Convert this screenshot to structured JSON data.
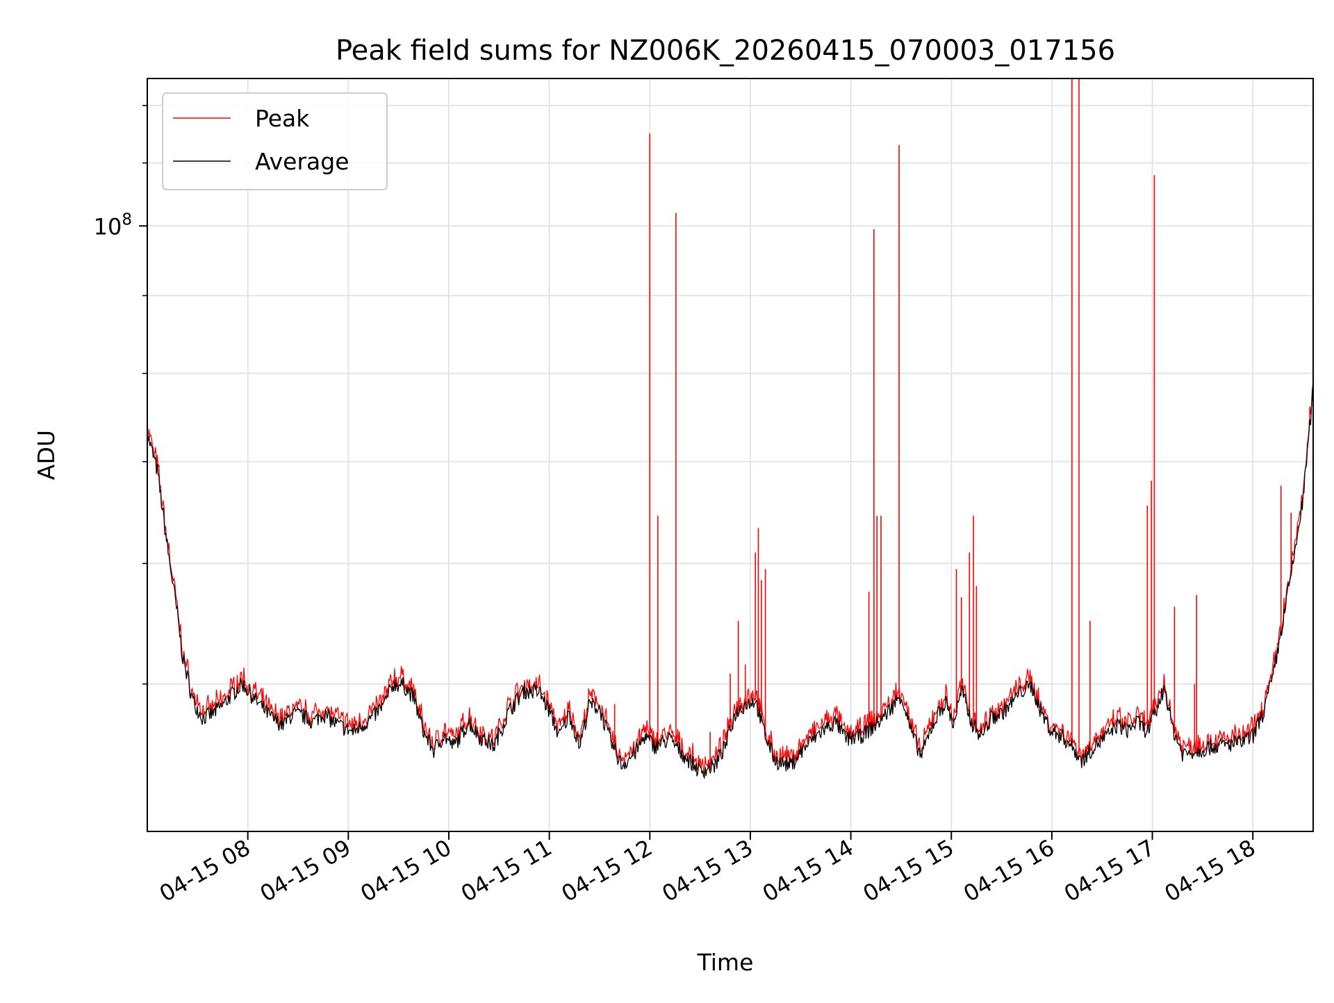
{
  "chart_data": {
    "type": "line",
    "title": "Peak field sums for NZ006K_20260415_070003_017156",
    "xlabel": "Time",
    "ylabel": "ADU",
    "yscale": "log",
    "ylim": [
      40000000.0,
      125000000.0
    ],
    "xlim": [
      7.0,
      18.6
    ],
    "grid": true,
    "legend": {
      "position": "top-left",
      "entries": [
        "Peak",
        "Average"
      ]
    },
    "x_ticks": [
      {
        "value": 8,
        "label": "04-15 08"
      },
      {
        "value": 9,
        "label": "04-15 09"
      },
      {
        "value": 10,
        "label": "04-15 10"
      },
      {
        "value": 11,
        "label": "04-15 11"
      },
      {
        "value": 12,
        "label": "04-15 12"
      },
      {
        "value": 13,
        "label": "04-15 13"
      },
      {
        "value": 14,
        "label": "04-15 14"
      },
      {
        "value": 15,
        "label": "04-15 15"
      },
      {
        "value": 16,
        "label": "04-15 16"
      },
      {
        "value": 17,
        "label": "04-15 17"
      },
      {
        "value": 18,
        "label": "04-15 18"
      }
    ],
    "y_major_ticks": [
      {
        "value": 100000000.0,
        "base": "10",
        "exp": "8"
      }
    ],
    "y_minor_ticks": [
      50000000.0,
      60000000.0,
      70000000.0,
      80000000.0,
      90000000.0,
      110000000.0,
      120000000.0
    ],
    "series": [
      {
        "name": "Average",
        "color": "#000000",
        "points": [
          [
            7.0,
            73000000.0
          ],
          [
            7.1,
            69000000.0
          ],
          [
            7.2,
            61500000.0
          ],
          [
            7.3,
            55500000.0
          ],
          [
            7.35,
            52200000.0
          ],
          [
            7.45,
            48800000.0
          ],
          [
            7.55,
            47500000.0
          ],
          [
            7.65,
            47800000.0
          ],
          [
            7.75,
            48400000.0
          ],
          [
            7.85,
            49300000.0
          ],
          [
            7.95,
            50000000.0
          ],
          [
            8.05,
            49000000.0
          ],
          [
            8.15,
            48200000.0
          ],
          [
            8.25,
            47400000.0
          ],
          [
            8.35,
            47000000.0
          ],
          [
            8.45,
            47800000.0
          ],
          [
            8.55,
            47600000.0
          ],
          [
            8.65,
            47200000.0
          ],
          [
            8.75,
            47800000.0
          ],
          [
            8.85,
            47200000.0
          ],
          [
            8.95,
            46800000.0
          ],
          [
            9.05,
            46500000.0
          ],
          [
            9.15,
            47000000.0
          ],
          [
            9.25,
            47600000.0
          ],
          [
            9.35,
            48400000.0
          ],
          [
            9.45,
            50000000.0
          ],
          [
            9.55,
            49900000.0
          ],
          [
            9.65,
            49000000.0
          ],
          [
            9.75,
            46500000.0
          ],
          [
            9.85,
            45200000.0
          ],
          [
            9.95,
            46200000.0
          ],
          [
            10.05,
            45500000.0
          ],
          [
            10.2,
            47200000.0
          ],
          [
            10.3,
            46200000.0
          ],
          [
            10.45,
            45500000.0
          ],
          [
            10.6,
            48000000.0
          ],
          [
            10.75,
            49500000.0
          ],
          [
            10.9,
            49400000.0
          ],
          [
            11.0,
            48000000.0
          ],
          [
            11.1,
            46200000.0
          ],
          [
            11.2,
            47800000.0
          ],
          [
            11.3,
            45500000.0
          ],
          [
            11.4,
            48500000.0
          ],
          [
            11.5,
            48200000.0
          ],
          [
            11.6,
            46000000.0
          ],
          [
            11.72,
            44200000.0
          ],
          [
            11.85,
            45000000.0
          ],
          [
            11.95,
            46200000.0
          ],
          [
            12.05,
            45500000.0
          ],
          [
            12.2,
            46000000.0
          ],
          [
            12.35,
            44800000.0
          ],
          [
            12.5,
            43800000.0
          ],
          [
            12.65,
            44200000.0
          ],
          [
            12.75,
            45500000.0
          ],
          [
            12.85,
            47800000.0
          ],
          [
            12.95,
            48500000.0
          ],
          [
            13.05,
            48800000.0
          ],
          [
            13.15,
            46200000.0
          ],
          [
            13.25,
            44500000.0
          ],
          [
            13.4,
            44200000.0
          ],
          [
            13.55,
            45500000.0
          ],
          [
            13.7,
            46500000.0
          ],
          [
            13.85,
            47200000.0
          ],
          [
            13.95,
            46000000.0
          ],
          [
            14.1,
            46200000.0
          ],
          [
            14.25,
            47000000.0
          ],
          [
            14.4,
            48200000.0
          ],
          [
            14.5,
            49200000.0
          ],
          [
            14.6,
            46500000.0
          ],
          [
            14.7,
            44800000.0
          ],
          [
            14.8,
            46800000.0
          ],
          [
            14.9,
            48200000.0
          ],
          [
            14.95,
            48600000.0
          ],
          [
            15.02,
            47000000.0
          ],
          [
            15.1,
            49500000.0
          ],
          [
            15.2,
            47200000.0
          ],
          [
            15.3,
            46200000.0
          ],
          [
            15.4,
            47500000.0
          ],
          [
            15.5,
            47800000.0
          ],
          [
            15.6,
            48600000.0
          ],
          [
            15.7,
            49500000.0
          ],
          [
            15.8,
            49800000.0
          ],
          [
            15.9,
            47800000.0
          ],
          [
            16.0,
            46500000.0
          ],
          [
            16.1,
            46200000.0
          ],
          [
            16.2,
            45500000.0
          ],
          [
            16.3,
            44500000.0
          ],
          [
            16.42,
            45500000.0
          ],
          [
            16.55,
            46200000.0
          ],
          [
            16.65,
            47000000.0
          ],
          [
            16.75,
            46600000.0
          ],
          [
            16.85,
            47200000.0
          ],
          [
            16.95,
            46500000.0
          ],
          [
            17.05,
            48200000.0
          ],
          [
            17.12,
            49800000.0
          ],
          [
            17.2,
            46800000.0
          ],
          [
            17.3,
            45000000.0
          ],
          [
            17.45,
            45200000.0
          ],
          [
            17.6,
            45500000.0
          ],
          [
            17.75,
            45600000.0
          ],
          [
            17.9,
            45800000.0
          ],
          [
            18.0,
            46200000.0
          ],
          [
            18.1,
            47800000.0
          ],
          [
            18.2,
            50500000.0
          ],
          [
            18.3,
            55000000.0
          ],
          [
            18.4,
            60000000.0
          ],
          [
            18.5,
            66200000.0
          ],
          [
            18.6,
            78000000.0
          ]
        ]
      },
      {
        "name": "Peak",
        "color": "#ff0000",
        "spikes": [
          [
            11.65,
            48500000.0
          ],
          [
            11.9,
            46500000.0
          ],
          [
            12.0,
            115000000.0
          ],
          [
            12.08,
            64500000.0
          ],
          [
            12.26,
            102000000.0
          ],
          [
            12.6,
            46500000.0
          ],
          [
            12.8,
            50800000.0
          ],
          [
            12.88,
            55000000.0
          ],
          [
            12.95,
            51500000.0
          ],
          [
            13.05,
            61000000.0
          ],
          [
            13.08,
            63300000.0
          ],
          [
            13.11,
            58500000.0
          ],
          [
            13.15,
            59500000.0
          ],
          [
            14.18,
            57500000.0
          ],
          [
            14.23,
            99500000.0
          ],
          [
            14.26,
            64500000.0
          ],
          [
            14.3,
            64500000.0
          ],
          [
            14.48,
            113000000.0
          ],
          [
            15.05,
            59500000.0
          ],
          [
            15.1,
            57000000.0
          ],
          [
            15.18,
            61000000.0
          ],
          [
            15.22,
            64500000.0
          ],
          [
            15.25,
            58000000.0
          ],
          [
            16.2,
            125000000.0
          ],
          [
            16.27,
            125000000.0
          ],
          [
            16.38,
            55000000.0
          ],
          [
            16.95,
            65500000.0
          ],
          [
            16.99,
            68000000.0
          ],
          [
            17.02,
            108000000.0
          ],
          [
            17.22,
            56200000.0
          ],
          [
            17.42,
            50000000.0
          ],
          [
            17.44,
            57200000.0
          ],
          [
            18.28,
            67500000.0
          ],
          [
            18.38,
            64800000.0
          ],
          [
            18.45,
            63500000.0
          ]
        ]
      }
    ]
  }
}
